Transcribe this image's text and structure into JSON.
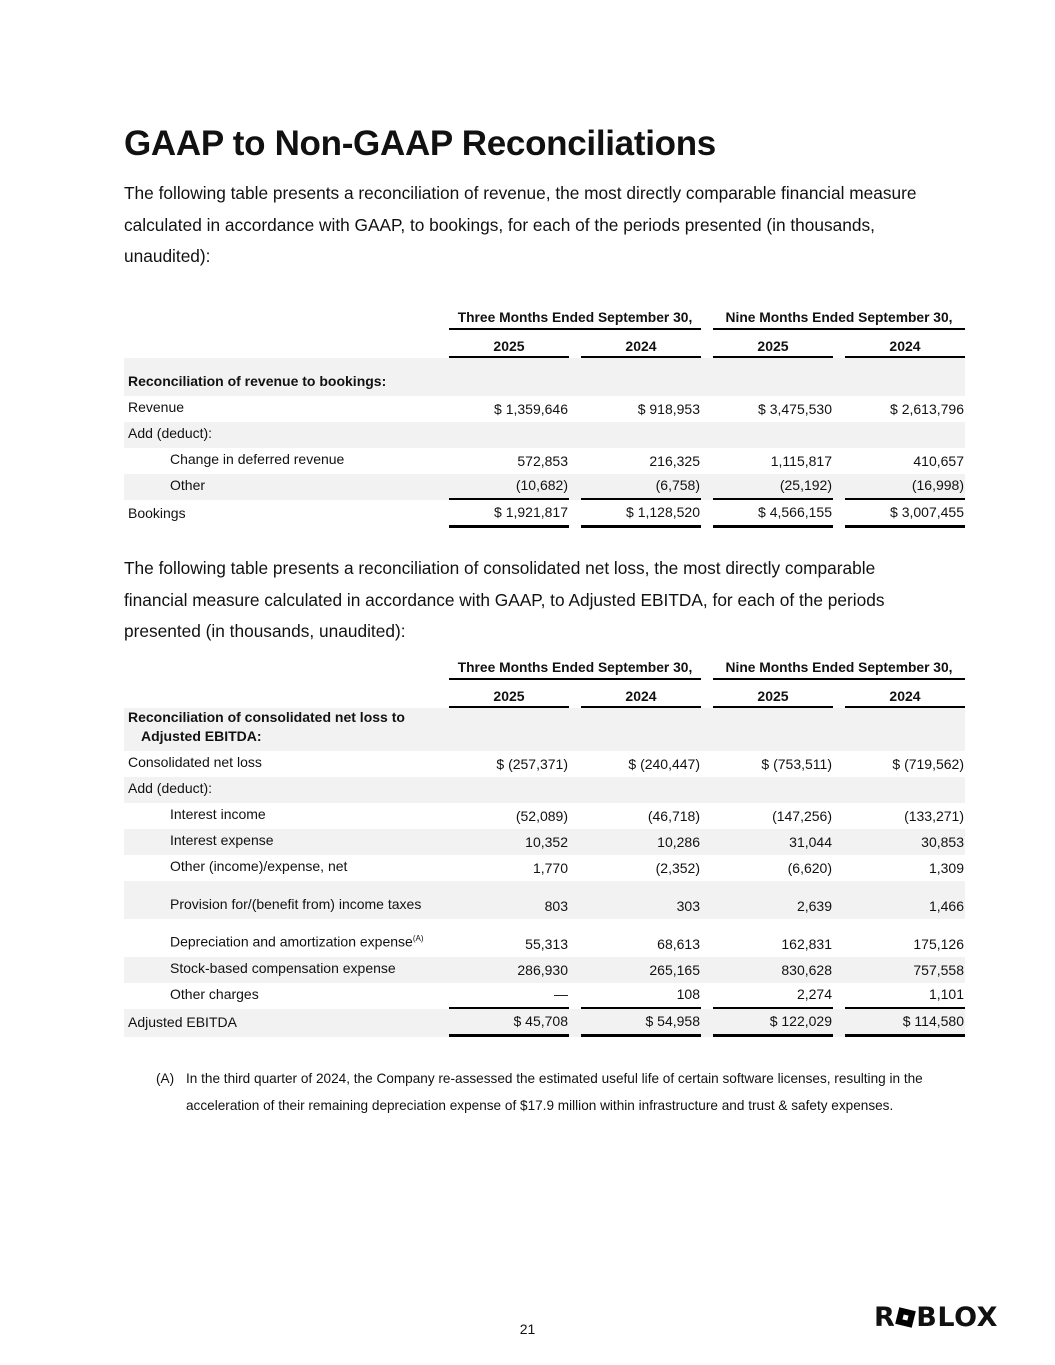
{
  "title": "GAAP to Non-GAAP Reconciliations",
  "intro1": "The following table presents a reconciliation of revenue, the most directly comparable financial measure calculated in accordance with GAAP, to bookings, for each of the periods presented (in thousands, unaudited):",
  "intro2": "The following table presents a reconciliation of consolidated net loss, the most directly comparable financial measure calculated in accordance with GAAP, to Adjusted EBITDA, for each of the periods presented (in thousands, unaudited):",
  "tables": [
    {
      "groups": [
        "Three Months Ended September 30,",
        "Nine Months Ended September 30,"
      ],
      "years": [
        "2025",
        "2024",
        "2025",
        "2024"
      ],
      "rows": [
        {
          "label": "Reconciliation of revenue to bookings:",
          "type": "section",
          "values": []
        },
        {
          "label": "Revenue",
          "type": "item",
          "values": [
            "$ 1,359,646",
            "$ 918,953",
            "$ 3,475,530",
            "$ 2,613,796"
          ]
        },
        {
          "label": "Add (deduct):",
          "type": "item",
          "values": []
        },
        {
          "label": "Change in deferred revenue",
          "type": "indent",
          "values": [
            "572,853",
            "216,325",
            "1,115,817",
            "410,657"
          ]
        },
        {
          "label": "Other",
          "type": "indent",
          "values": [
            "(10,682)",
            "(6,758)",
            "(25,192)",
            "(16,998)"
          ]
        },
        {
          "label": "Bookings",
          "type": "total",
          "values": [
            "$ 1,921,817",
            "$ 1,128,520",
            "$ 4,566,155",
            "$ 3,007,455"
          ]
        }
      ]
    },
    {
      "groups": [
        "Three Months Ended September 30,",
        "Nine Months Ended September 30,"
      ],
      "years": [
        "2025",
        "2024",
        "2025",
        "2024"
      ],
      "rows": [
        {
          "label": "Reconciliation of consolidated net loss to Adjusted EBITDA:",
          "type": "section",
          "values": []
        },
        {
          "label": "Consolidated net loss",
          "type": "item",
          "values": [
            "$ (257,371)",
            "$ (240,447)",
            "$ (753,511)",
            "$ (719,562)"
          ]
        },
        {
          "label": "Add (deduct):",
          "type": "item",
          "values": []
        },
        {
          "label": "Interest income",
          "type": "indent",
          "values": [
            "(52,089)",
            "(46,718)",
            "(147,256)",
            "(133,271)"
          ]
        },
        {
          "label": "Interest expense",
          "type": "indent",
          "values": [
            "10,352",
            "10,286",
            "31,044",
            "30,853"
          ]
        },
        {
          "label": "Other (income)/expense, net",
          "type": "indent",
          "values": [
            "1,770",
            "(2,352)",
            "(6,620)",
            "1,309"
          ]
        },
        {
          "label": "Provision for/(benefit from) income taxes",
          "type": "indent",
          "values": [
            "803",
            "303",
            "2,639",
            "1,466"
          ]
        },
        {
          "label": "Depreciation and amortization expense",
          "footnote_ref": "(A)",
          "type": "indent",
          "values": [
            "55,313",
            "68,613",
            "162,831",
            "175,126"
          ]
        },
        {
          "label": "Stock-based compensation expense",
          "type": "indent",
          "values": [
            "286,930",
            "265,165",
            "830,628",
            "757,558"
          ]
        },
        {
          "label": "Other charges",
          "type": "indent",
          "values": [
            "—",
            "108",
            "2,274",
            "1,101"
          ]
        },
        {
          "label": "Adjusted EBITDA",
          "type": "total",
          "values": [
            "$ 45,708",
            "$ 54,958",
            "$ 122,029",
            "$ 114,580"
          ]
        }
      ]
    }
  ],
  "footnote": {
    "mark": "(A)",
    "text": "In the third quarter of 2024, the Company re-assessed the estimated useful life of certain software licenses, resulting in the acceleration of their remaining depreciation expense of $17.9 million within infrastructure and trust & safety expenses."
  },
  "page_number": "21",
  "logo": "ROBLOX"
}
